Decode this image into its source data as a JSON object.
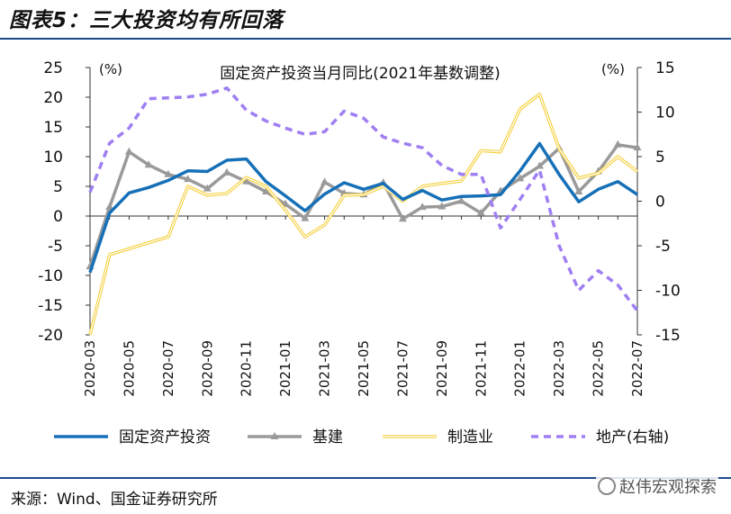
{
  "figure_title": "图表5：三大投资均有所回落",
  "source": "来源：Wind、国金证券研究所",
  "watermark": "赵伟宏观探索",
  "chart_data": {
    "type": "line",
    "title": "固定资产投资当月同比(2021年基数调整)",
    "left_unit": "(%)",
    "right_unit": "(%)",
    "left_ylim": [
      -20,
      25
    ],
    "left_ticks": [
      25,
      20,
      15,
      10,
      5,
      0,
      -5,
      -10,
      -15,
      -20
    ],
    "right_ylim": [
      -15,
      15
    ],
    "right_ticks": [
      15,
      10,
      5,
      0,
      -5,
      -10,
      -15
    ],
    "x": [
      "2020-03",
      "2020-04",
      "2020-05",
      "2020-06",
      "2020-07",
      "2020-08",
      "2020-09",
      "2020-10",
      "2020-11",
      "2020-12",
      "2021-01",
      "2021-02",
      "2021-03",
      "2021-04",
      "2021-05",
      "2021-06",
      "2021-07",
      "2021-08",
      "2021-09",
      "2021-10",
      "2021-11",
      "2021-12",
      "2022-01",
      "2022-02",
      "2022-03",
      "2022-04",
      "2022-05",
      "2022-06",
      "2022-07"
    ],
    "x_tick_labels": [
      "2020-03",
      "2020-05",
      "2020-07",
      "2020-09",
      "2020-11",
      "2021-01",
      "2021-03",
      "2021-05",
      "2021-07",
      "2021-09",
      "2021-11",
      "2022-01",
      "2022-03",
      "2022-05",
      "2022-07"
    ],
    "legend_position": "bottom",
    "series": [
      {
        "name": "固定资产投资",
        "axis": "left",
        "color": "#1670b8",
        "style": "solid",
        "values": [
          -9.5,
          0.5,
          3.9,
          4.8,
          6.0,
          7.6,
          7.5,
          9.4,
          9.6,
          5.8,
          3.4,
          0.9,
          3.7,
          5.6,
          4.5,
          5.5,
          2.8,
          4.3,
          2.7,
          3.3,
          3.4,
          3.6,
          7.6,
          12.2,
          7.0,
          2.4,
          4.5,
          5.8,
          3.6
        ]
      },
      {
        "name": "基建",
        "axis": "left",
        "color": "#9a9a9a",
        "style": "marker",
        "values": [
          -8.5,
          1.5,
          10.8,
          8.6,
          7.0,
          6.2,
          4.6,
          7.3,
          5.8,
          4.1,
          2.0,
          -0.4,
          5.7,
          3.8,
          3.6,
          5.6,
          -0.5,
          1.5,
          1.6,
          2.5,
          0.5,
          4.2,
          6.3,
          8.4,
          11.4,
          4.1,
          7.5,
          12.0,
          11.5
        ]
      },
      {
        "name": "制造业",
        "axis": "left",
        "color": "#f5d142",
        "style": "double",
        "values": [
          -20,
          -6.5,
          -5.5,
          -4.5,
          -3.5,
          5.0,
          3.5,
          3.8,
          6.5,
          5.0,
          1.0,
          -3.5,
          -1.5,
          3.5,
          3.6,
          5.0,
          2.5,
          5.0,
          5.5,
          5.9,
          11.0,
          10.8,
          18.0,
          20.5,
          11.3,
          6.4,
          7.2,
          10.0,
          7.5
        ]
      },
      {
        "name": "地产(右轴)",
        "axis": "right",
        "color": "#9f7ff2",
        "style": "dashed",
        "values": [
          1.0,
          6.5,
          8.2,
          11.5,
          11.6,
          11.7,
          12.0,
          12.7,
          10.2,
          9.0,
          8.2,
          7.5,
          7.8,
          10.1,
          9.3,
          7.2,
          6.5,
          6.0,
          4.0,
          3.0,
          3.0,
          -3.0,
          0.2,
          3.5,
          -5.0,
          -10.0,
          -7.8,
          -9.4,
          -12.3
        ]
      }
    ]
  }
}
